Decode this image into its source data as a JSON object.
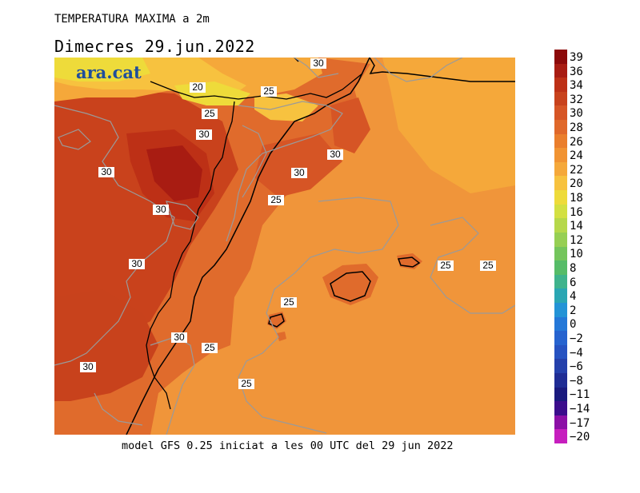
{
  "header": {
    "title": "TEMPERATURA MAXIMA a 2m",
    "date": "Dimecres   29.jun.2022"
  },
  "footer": "model GFS 0.25 iniciat a les 00 UTC del 29 jun 2022",
  "logo": "ara.cat",
  "contour_labels": [
    "30",
    "20",
    "25",
    "25",
    "30",
    "30",
    "30",
    "30",
    "25",
    "30",
    "30",
    "25",
    "25",
    "25",
    "30",
    "25",
    "30",
    "25"
  ],
  "colorbar": {
    "ticks": [
      "39",
      "36",
      "34",
      "32",
      "30",
      "28",
      "26",
      "24",
      "22",
      "20",
      "18",
      "16",
      "14",
      "12",
      "10",
      "8",
      "6",
      "4",
      "2",
      "0",
      "−2",
      "−4",
      "−6",
      "−8",
      "−11",
      "−14",
      "−17",
      "−20"
    ],
    "colors": [
      "#8c0a0a",
      "#a81c12",
      "#bd3016",
      "#c8421c",
      "#d65525",
      "#e0682a",
      "#ea7e2c",
      "#f19332",
      "#f5a83a",
      "#f7c23f",
      "#eedb3a",
      "#d3e042",
      "#b6d84a",
      "#96cf53",
      "#74c55c",
      "#56bc68",
      "#3fb38c",
      "#2aa6b3",
      "#2393d6",
      "#2478d8",
      "#2663cf",
      "#2652c1",
      "#2440ab",
      "#1f2c94",
      "#1a1a7e",
      "#3b0d8c",
      "#8c10a6",
      "#c61ebe"
    ]
  }
}
